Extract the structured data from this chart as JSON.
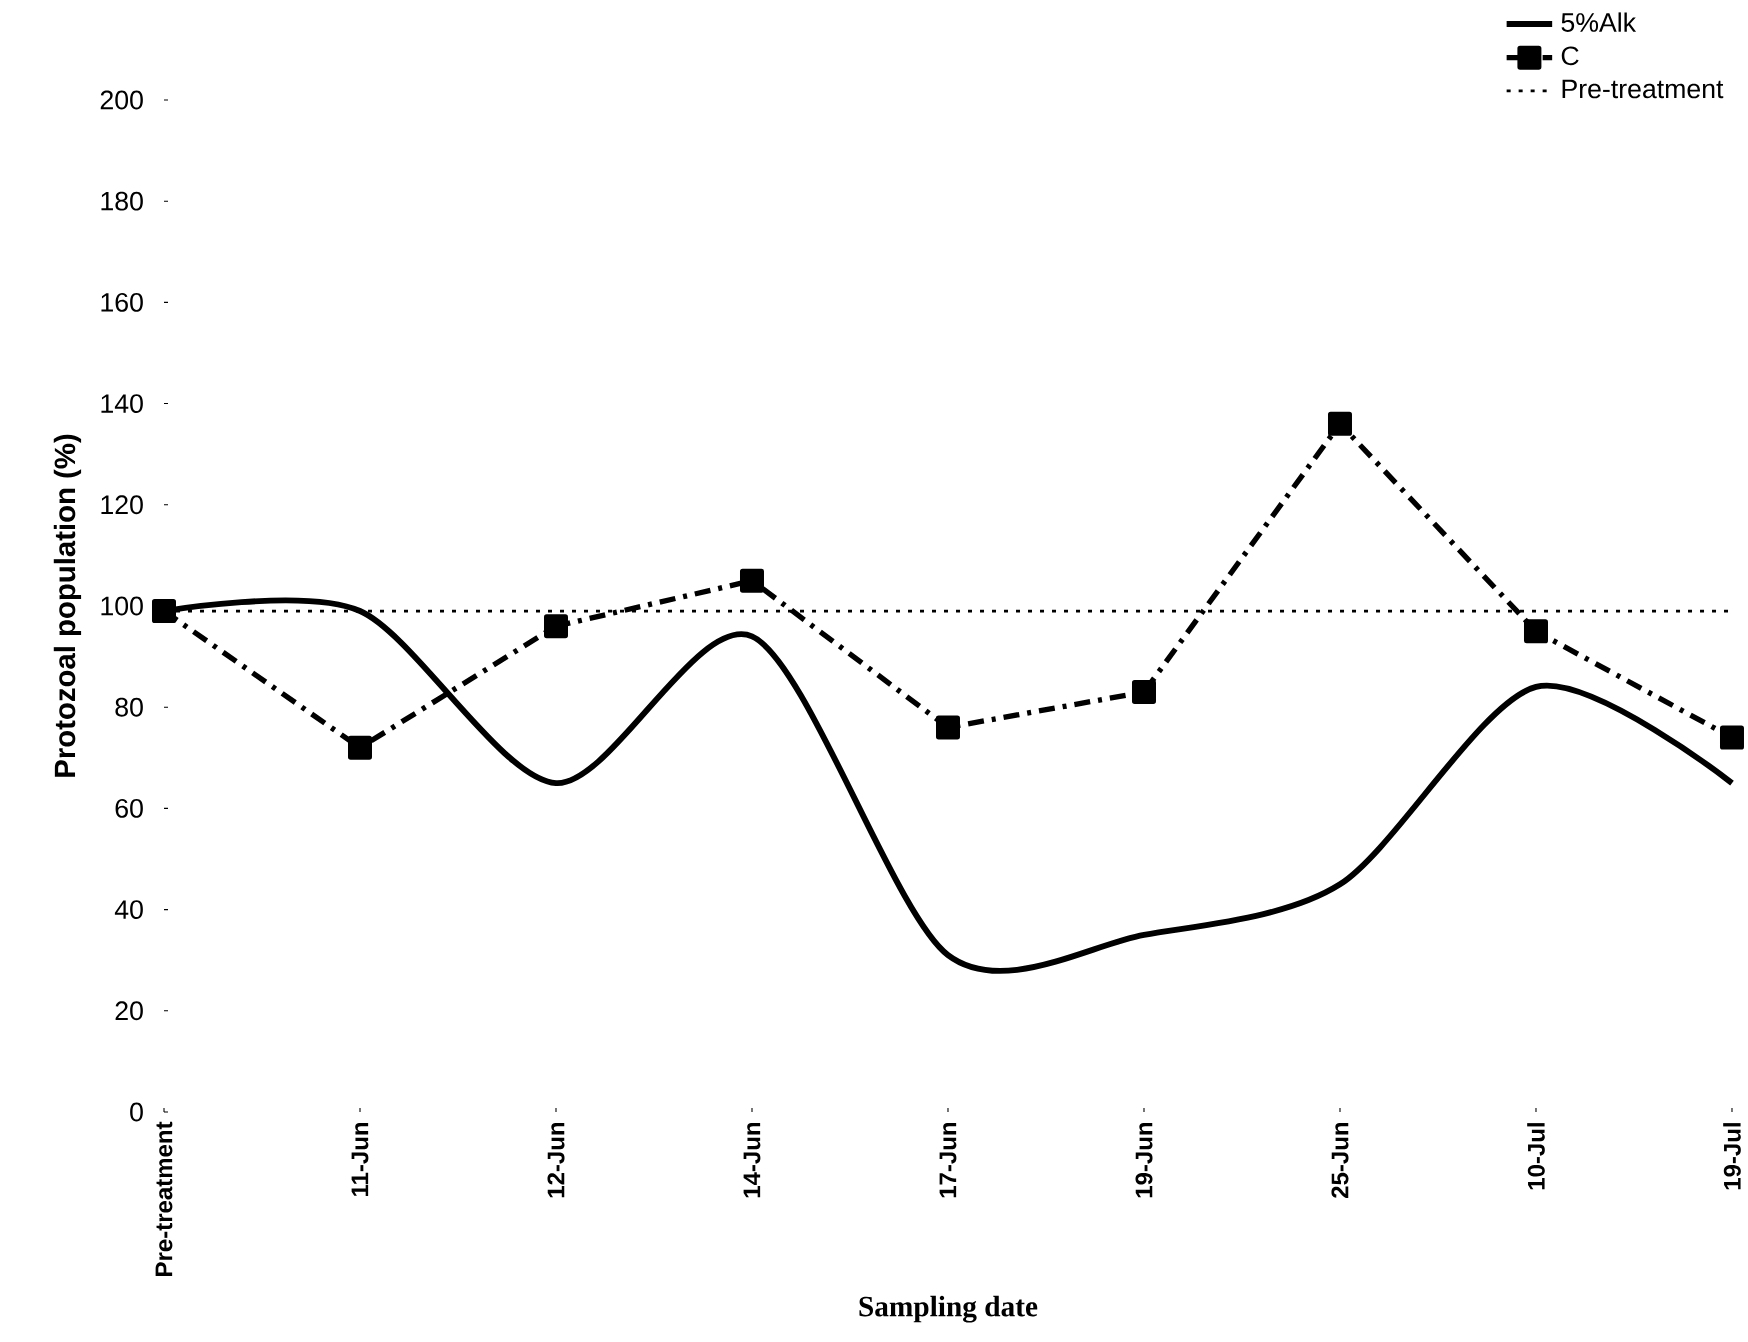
{
  "chart_data": {
    "type": "line",
    "xlabel": "Sampling date",
    "ylabel": "Protozoal population (%)",
    "categories": [
      "Pre-treatment",
      "11-Jun",
      "12-Jun",
      "14-Jun",
      "17-Jun",
      "19-Jun",
      "25-Jun",
      "10-Jul",
      "19-Jul"
    ],
    "series": [
      {
        "name": "5%Alk",
        "color": "#000000",
        "values": [
          99,
          99,
          65,
          94,
          31,
          35,
          45,
          84,
          65
        ],
        "line_style": "solid",
        "marker": "none"
      },
      {
        "name": "C",
        "color": "#000000",
        "values": [
          99,
          72,
          96,
          105,
          76,
          83,
          136,
          95,
          74
        ],
        "line_style": "dashdot",
        "marker": "square"
      },
      {
        "name": "Pre-treatment",
        "color": "#000000",
        "values": [
          99,
          99,
          99,
          99,
          99,
          99,
          99,
          99,
          99
        ],
        "line_style": "dotted",
        "marker": "none"
      }
    ],
    "ylim": [
      0,
      200
    ],
    "yticks": [
      0,
      20,
      40,
      60,
      80,
      100,
      120,
      140,
      160,
      180,
      200
    ],
    "grid": false,
    "legend": "top right"
  }
}
